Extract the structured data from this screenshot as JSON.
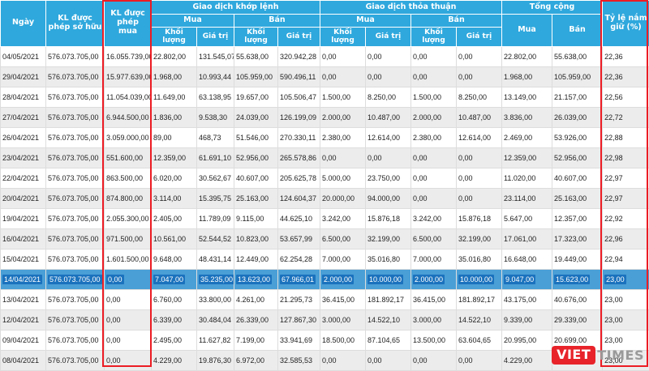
{
  "table": {
    "headers": {
      "date": "Ngày",
      "allowed_own": "KL được phép sở hữu",
      "allowed_buy": "KL được phép mua",
      "order_matching": "Giao dịch khớp lệnh",
      "put_through": "Giao dịch thỏa thuận",
      "total": "Tổng cộng",
      "holding_ratio": "Tỷ lệ nắm giữ (%)",
      "buy": "Mua",
      "sell": "Bán",
      "volume": "Khối lượng",
      "value": "Giá trị"
    },
    "selected_row_index": 11,
    "rows": [
      [
        "04/05/2021",
        "576.073.705,00",
        "16.055.739,00",
        "22.802,00",
        "131.545,07",
        "55.638,00",
        "320.942,28",
        "0,00",
        "0,00",
        "0,00",
        "0,00",
        "22.802,00",
        "55.638,00",
        "22,36"
      ],
      [
        "29/04/2021",
        "576.073.705,00",
        "15.977.639,00",
        "1.968,00",
        "10.993,44",
        "105.959,00",
        "590.496,11",
        "0,00",
        "0,00",
        "0,00",
        "0,00",
        "1.968,00",
        "105.959,00",
        "22,36"
      ],
      [
        "28/04/2021",
        "576.073.705,00",
        "11.054.039,00",
        "11.649,00",
        "63.138,95",
        "19.657,00",
        "105.506,47",
        "1.500,00",
        "8.250,00",
        "1.500,00",
        "8.250,00",
        "13.149,00",
        "21.157,00",
        "22,56"
      ],
      [
        "27/04/2021",
        "576.073.705,00",
        "6.944.500,00",
        "1.836,00",
        "9.538,30",
        "24.039,00",
        "126.199,09",
        "2.000,00",
        "10.487,00",
        "2.000,00",
        "10.487,00",
        "3.836,00",
        "26.039,00",
        "22,72"
      ],
      [
        "26/04/2021",
        "576.073.705,00",
        "3.059.000,00",
        "89,00",
        "468,73",
        "51.546,00",
        "270.330,11",
        "2.380,00",
        "12.614,00",
        "2.380,00",
        "12.614,00",
        "2.469,00",
        "53.926,00",
        "22,88"
      ],
      [
        "23/04/2021",
        "576.073.705,00",
        "551.600,00",
        "12.359,00",
        "61.691,10",
        "52.956,00",
        "265.578,86",
        "0,00",
        "0,00",
        "0,00",
        "0,00",
        "12.359,00",
        "52.956,00",
        "22,98"
      ],
      [
        "22/04/2021",
        "576.073.705,00",
        "863.500,00",
        "6.020,00",
        "30.562,67",
        "40.607,00",
        "205.625,78",
        "5.000,00",
        "23.750,00",
        "0,00",
        "0,00",
        "11.020,00",
        "40.607,00",
        "22,97"
      ],
      [
        "20/04/2021",
        "576.073.705,00",
        "874.800,00",
        "3.114,00",
        "15.395,75",
        "25.163,00",
        "124.604,37",
        "20.000,00",
        "94.000,00",
        "0,00",
        "0,00",
        "23.114,00",
        "25.163,00",
        "22,97"
      ],
      [
        "19/04/2021",
        "576.073.705,00",
        "2.055.300,00",
        "2.405,00",
        "11.789,09",
        "9.115,00",
        "44.625,10",
        "3.242,00",
        "15.876,18",
        "3.242,00",
        "15.876,18",
        "5.647,00",
        "12.357,00",
        "22,92"
      ],
      [
        "16/04/2021",
        "576.073.705,00",
        "971.500,00",
        "10.561,00",
        "52.544,52",
        "10.823,00",
        "53.657,99",
        "6.500,00",
        "32.199,00",
        "6.500,00",
        "32.199,00",
        "17.061,00",
        "17.323,00",
        "22,96"
      ],
      [
        "15/04/2021",
        "576.073.705,00",
        "1.601.500,00",
        "9.648,00",
        "48.431,14",
        "12.449,00",
        "62.254,28",
        "7.000,00",
        "35.016,80",
        "7.000,00",
        "35.016,80",
        "16.648,00",
        "19.449,00",
        "22,94"
      ],
      [
        "14/04/2021",
        "576.073.705,00",
        "0,00",
        "7.047,00",
        "35.235,00",
        "13.623,00",
        "67.966,01",
        "2.000,00",
        "10.000,00",
        "2.000,00",
        "10.000,00",
        "9.047,00",
        "15.623,00",
        "23,00"
      ],
      [
        "13/04/2021",
        "576.073.705,00",
        "0,00",
        "6.760,00",
        "33.800,00",
        "4.261,00",
        "21.295,73",
        "36.415,00",
        "181.892,17",
        "36.415,00",
        "181.892,17",
        "43.175,00",
        "40.676,00",
        "23,00"
      ],
      [
        "12/04/2021",
        "576.073.705,00",
        "0,00",
        "6.339,00",
        "30.484,04",
        "26.339,00",
        "127.867,30",
        "3.000,00",
        "14.522,10",
        "3.000,00",
        "14.522,10",
        "9.339,00",
        "29.339,00",
        "23,00"
      ],
      [
        "09/04/2021",
        "576.073.705,00",
        "0,00",
        "2.495,00",
        "11.627,82",
        "7.199,00",
        "33.941,69",
        "18.500,00",
        "87.104,65",
        "13.500,00",
        "63.604,65",
        "20.995,00",
        "20.699,00",
        "23,00"
      ],
      [
        "08/04/2021",
        "576.073.705,00",
        "0,00",
        "4.229,00",
        "19.876,30",
        "6.972,00",
        "32.585,53",
        "0,00",
        "0,00",
        "0,00",
        "0,00",
        "4.229,00",
        "6.972,00",
        "23,00"
      ]
    ]
  },
  "logo": {
    "viet": "VIET",
    "times": "TIMES"
  },
  "colors": {
    "header_bg": "#2FA8DD",
    "selected_row_bg": "#4A9FD6",
    "selected_chip_bg": "#1B72BD",
    "highlight_border": "#EC1C24",
    "logo_red": "#E8232A"
  }
}
